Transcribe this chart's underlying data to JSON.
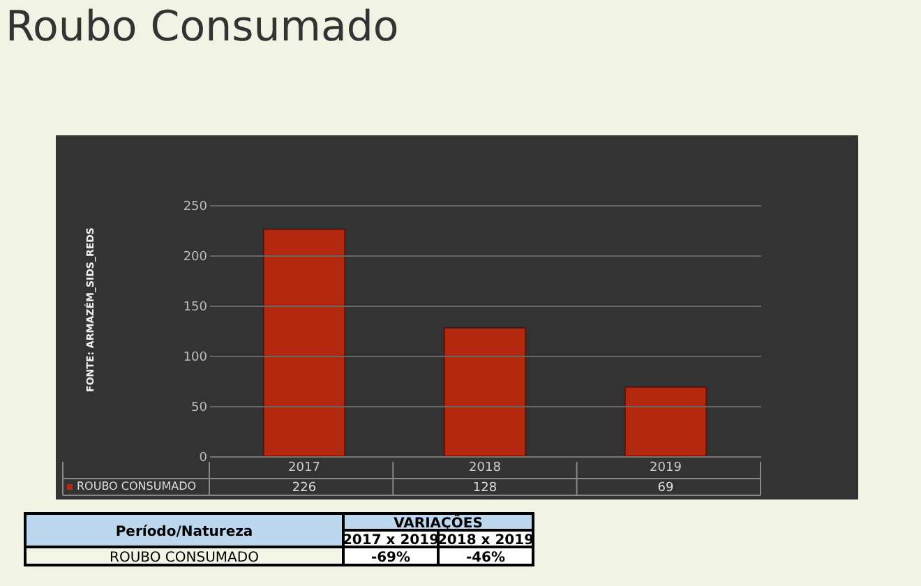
{
  "chart_data": {
    "type": "bar",
    "title": "Roubo Consumado",
    "categories": [
      "2017",
      "2018",
      "2019"
    ],
    "series": [
      {
        "name": "ROUBO CONSUMADO",
        "color": "#b3290f",
        "values": [
          226,
          128,
          69
        ]
      }
    ],
    "ylim": [
      0,
      250
    ],
    "yticks": [
      0,
      50,
      100,
      150,
      200,
      250
    ],
    "grid": "y",
    "data_labels": true,
    "annotations": [
      "FONTE: ARMAZÉM_SIDS_REDS",
      "Período/Natureza",
      "VARIAÇÕES",
      "2017 x 2019",
      "2018 x 2019",
      "ROUBO CONSUMADO",
      "-69%",
      "-46%"
    ]
  }
}
